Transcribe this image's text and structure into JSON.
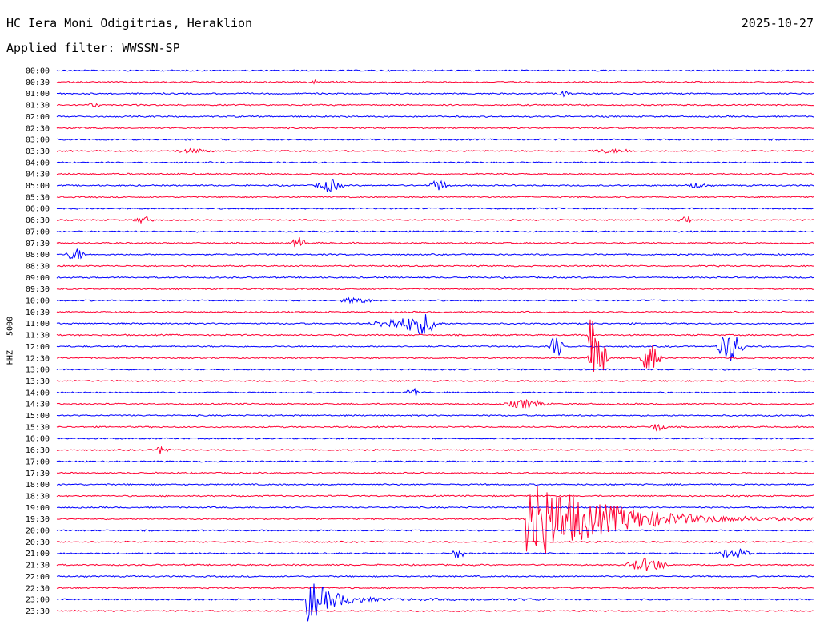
{
  "header": {
    "station": "HC Iera Moni Odigitrias, Heraklion",
    "date": "2025-10-27",
    "filter": "Applied filter: WWSSN-SP",
    "channel_label": "HHZ - 5000"
  },
  "colors": {
    "blue": "#0000ff",
    "red": "#ff0033"
  },
  "chart_data": {
    "type": "line",
    "description_kind": "helicorder",
    "title": "HC Iera Moni Odigitrias, Heraklion",
    "ylabel": "HHZ - 5000",
    "time_labels": [
      "00:00",
      "00:30",
      "01:00",
      "01:30",
      "02:00",
      "02:30",
      "03:00",
      "03:30",
      "04:00",
      "04:30",
      "05:00",
      "05:30",
      "06:00",
      "06:30",
      "07:00",
      "07:30",
      "08:00",
      "08:30",
      "09:00",
      "09:30",
      "10:00",
      "10:30",
      "11:00",
      "11:30",
      "12:00",
      "12:30",
      "13:00",
      "13:30",
      "14:00",
      "14:30",
      "15:00",
      "15:30",
      "16:00",
      "16:30",
      "17:00",
      "17:30",
      "18:00",
      "18:30",
      "19:00",
      "19:30",
      "20:00",
      "20:30",
      "21:00",
      "21:30",
      "22:00",
      "22:30",
      "23:00",
      "23:30"
    ],
    "trace_colors": [
      "blue",
      "red"
    ],
    "events": [
      {
        "row": 1,
        "x": 0.33,
        "amp": 2,
        "len": 0.02
      },
      {
        "row": 2,
        "x": 0.66,
        "amp": 3,
        "len": 0.02
      },
      {
        "row": 3,
        "x": 0.04,
        "amp": 2,
        "len": 0.02
      },
      {
        "row": 7,
        "x": 0.15,
        "amp": 2,
        "len": 0.06
      },
      {
        "row": 7,
        "x": 0.7,
        "amp": 2,
        "len": 0.07
      },
      {
        "row": 10,
        "x": 0.34,
        "amp": 7,
        "len": 0.04
      },
      {
        "row": 10,
        "x": 0.49,
        "amp": 6,
        "len": 0.03
      },
      {
        "row": 10,
        "x": 0.83,
        "amp": 3,
        "len": 0.03
      },
      {
        "row": 13,
        "x": 0.1,
        "amp": 4,
        "len": 0.03
      },
      {
        "row": 13,
        "x": 0.82,
        "amp": 6,
        "len": 0.02
      },
      {
        "row": 15,
        "x": 0.31,
        "amp": 7,
        "len": 0.02
      },
      {
        "row": 16,
        "x": 0.01,
        "amp": 7,
        "len": 0.03
      },
      {
        "row": 20,
        "x": 0.37,
        "amp": 3,
        "len": 0.05
      },
      {
        "row": 22,
        "x": 0.41,
        "amp": 6,
        "len": 0.09
      },
      {
        "row": 22,
        "x": 0.46,
        "amp": 10,
        "len": 0.05
      },
      {
        "row": 23,
        "x": 0.7,
        "amp": 45,
        "len": 0.01
      },
      {
        "row": 24,
        "x": 0.65,
        "amp": 14,
        "len": 0.02
      },
      {
        "row": 24,
        "x": 0.87,
        "amp": 18,
        "len": 0.04
      },
      {
        "row": 25,
        "x": 0.7,
        "amp": 30,
        "len": 0.03
      },
      {
        "row": 25,
        "x": 0.77,
        "amp": 18,
        "len": 0.03
      },
      {
        "row": 28,
        "x": 0.46,
        "amp": 5,
        "len": 0.02
      },
      {
        "row": 29,
        "x": 0.59,
        "amp": 5,
        "len": 0.06
      },
      {
        "row": 31,
        "x": 0.78,
        "amp": 4,
        "len": 0.03
      },
      {
        "row": 33,
        "x": 0.13,
        "amp": 5,
        "len": 0.02
      },
      {
        "row": 39,
        "x": 0.62,
        "amp": 60,
        "len": 0.35
      },
      {
        "row": 42,
        "x": 0.52,
        "amp": 6,
        "len": 0.02
      },
      {
        "row": 42,
        "x": 0.87,
        "amp": 6,
        "len": 0.05
      },
      {
        "row": 43,
        "x": 0.75,
        "amp": 8,
        "len": 0.06
      },
      {
        "row": 46,
        "x": 0.33,
        "amp": 30,
        "len": 0.12
      }
    ]
  }
}
